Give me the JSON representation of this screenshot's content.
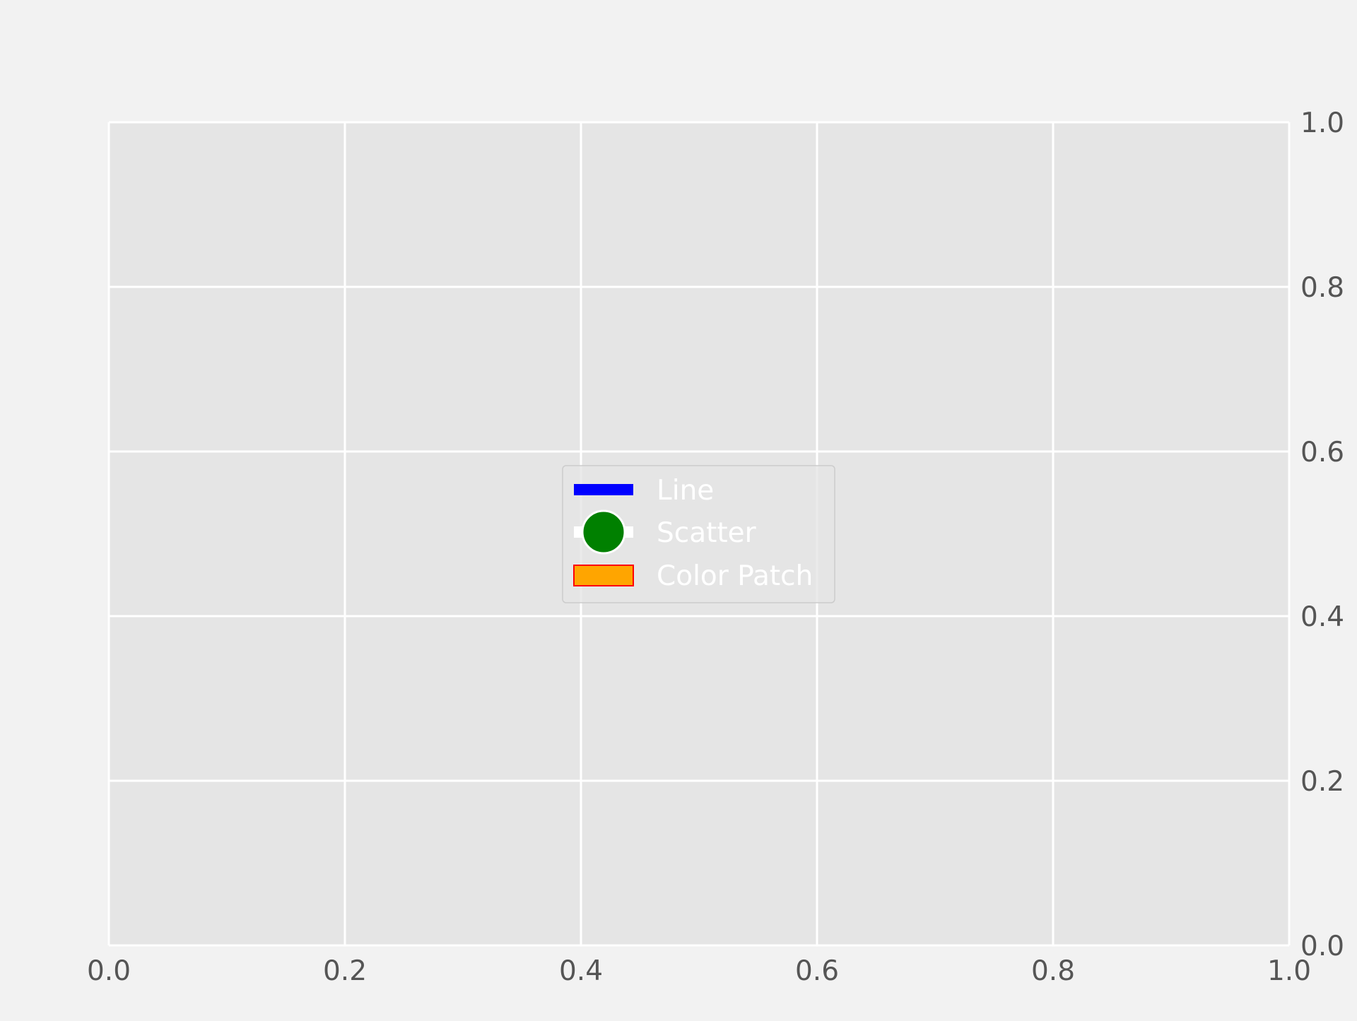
{
  "chart_data": {
    "type": "line",
    "title": "",
    "xlabel": "",
    "ylabel": "",
    "xlim": [
      0.0,
      1.0
    ],
    "ylim": [
      0.0,
      1.0
    ],
    "x_ticks": [
      "0.0",
      "0.2",
      "0.4",
      "0.6",
      "0.8",
      "1.0"
    ],
    "y_ticks": [
      "0.0",
      "0.2",
      "0.4",
      "0.6",
      "0.8",
      "1.0"
    ],
    "y_axis_side": "right",
    "grid": true,
    "legend_placement": "center",
    "series": [],
    "legend": [
      {
        "label": "Line",
        "kind": "line",
        "color": "#0000ff"
      },
      {
        "label": "Scatter",
        "kind": "marker",
        "color": "#008000",
        "line_color": "#ffffff"
      },
      {
        "label": "Color Patch",
        "kind": "patch",
        "color": "#ffa500",
        "edge_color": "#ff0000"
      }
    ],
    "colors": {
      "figure_background": "#f2f2f2",
      "plot_background": "#e5e5e5",
      "grid": "#ffffff",
      "tick_label": "#555555",
      "legend_text": "#ffffff"
    }
  }
}
